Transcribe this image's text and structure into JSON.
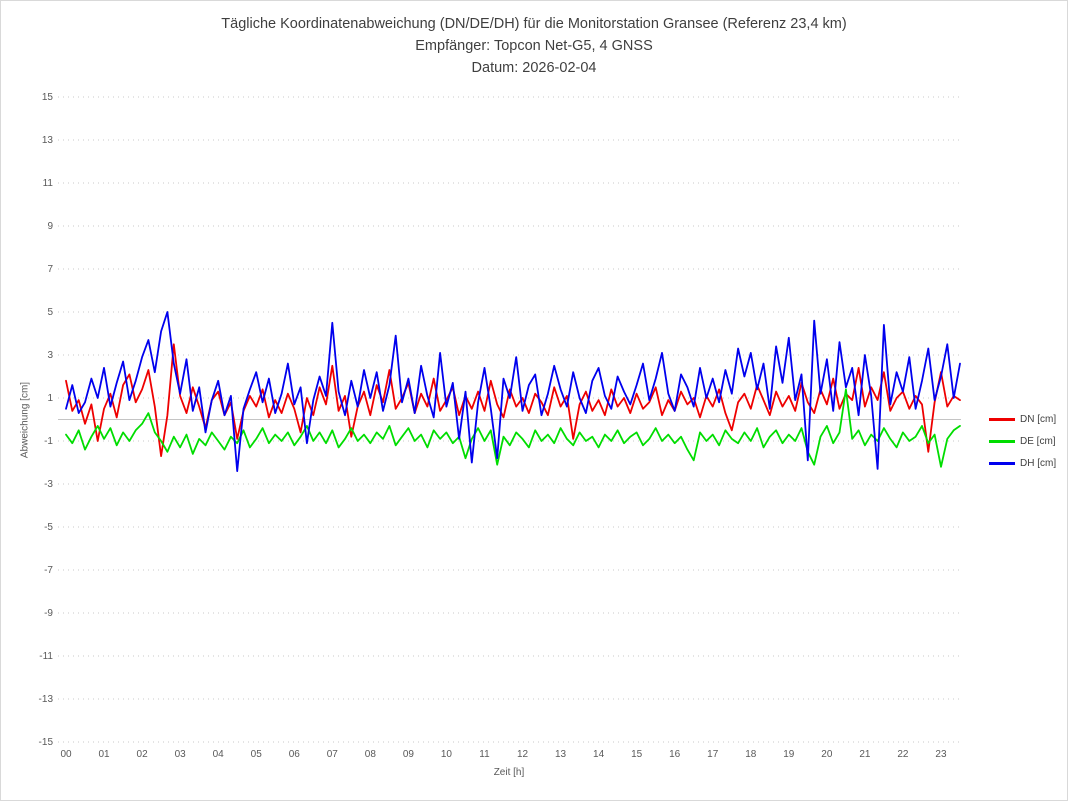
{
  "colors": {
    "grid": "#c9c9c9",
    "zero_line": "#c4c4c4",
    "axis_text": "#595959",
    "title_text": "#3f3f3f"
  },
  "chart_data": {
    "type": "line",
    "title": "Tägliche Koordinatenabweichung (DN/DE/DH) für die Monitorstation Gransee (Referenz 23,4 km)",
    "subtitle1": "Empfänger: Topcon Net-G5, 4 GNSS",
    "subtitle2": "Datum: 2026-02-04",
    "xlabel": "Zeit [h]",
    "ylabel": "Abweichung [cm]",
    "ylim": [
      -15,
      15
    ],
    "yticks": [
      15,
      13,
      11,
      9,
      7,
      5,
      3,
      1,
      -1,
      -3,
      -5,
      -7,
      -9,
      -11,
      -13,
      -15
    ],
    "xtick_labels": [
      "00",
      "01",
      "02",
      "03",
      "04",
      "05",
      "06",
      "07",
      "08",
      "09",
      "10",
      "11",
      "12",
      "13",
      "14",
      "15",
      "16",
      "17",
      "18",
      "19",
      "20",
      "21",
      "22",
      "23"
    ],
    "x_start_hour": 0,
    "x_step_minutes": 10,
    "x_end_hour": 23.5,
    "grid": "horizontal dotted lines at odd values, solid line at 0, no vertical gridlines",
    "legend_position": "right-middle",
    "series": [
      {
        "name": "DN [cm]",
        "id": "dn",
        "color": "#ee0000",
        "values": [
          1.8,
          0.4,
          0.9,
          -0.2,
          0.7,
          -1.0,
          0.5,
          1.2,
          0.1,
          1.6,
          2.1,
          0.8,
          1.4,
          2.3,
          0.6,
          -1.7,
          0.2,
          3.5,
          1.1,
          0.3,
          1.5,
          0.6,
          -0.4,
          0.9,
          1.3,
          0.2,
          0.8,
          -0.9,
          0.4,
          1.1,
          0.6,
          1.4,
          0.1,
          0.9,
          0.3,
          1.2,
          0.5,
          -0.6,
          1.0,
          0.2,
          1.5,
          0.7,
          2.5,
          0.4,
          1.1,
          -0.8,
          0.6,
          1.3,
          0.2,
          1.6,
          0.8,
          2.3,
          0.5,
          1.0,
          1.7,
          0.3,
          1.2,
          0.6,
          1.9,
          0.4,
          0.9,
          1.5,
          0.2,
          1.1,
          0.5,
          1.3,
          0.4,
          1.8,
          0.7,
          0.1,
          1.4,
          0.6,
          1.0,
          0.3,
          1.2,
          0.8,
          0.2,
          1.5,
          0.6,
          1.1,
          -0.9,
          0.7,
          1.3,
          0.4,
          0.9,
          0.2,
          1.4,
          0.6,
          1.0,
          0.3,
          1.2,
          0.5,
          0.8,
          1.5,
          0.2,
          0.9,
          0.4,
          1.3,
          0.7,
          1.0,
          0.1,
          1.1,
          0.6,
          1.4,
          0.3,
          -0.5,
          0.8,
          1.2,
          0.5,
          1.6,
          0.9,
          0.2,
          1.3,
          0.6,
          1.1,
          0.4,
          1.7,
          0.8,
          0.3,
          1.4,
          0.7,
          1.9,
          0.5,
          1.2,
          0.9,
          2.4,
          0.6,
          1.5,
          0.9,
          2.2,
          0.4,
          1.0,
          1.3,
          0.5,
          1.1,
          0.7,
          -1.5,
          0.8,
          2.2,
          0.6,
          1.1,
          0.9
        ]
      },
      {
        "name": "DE [cm]",
        "id": "de",
        "color": "#00dd00",
        "values": [
          -0.7,
          -1.1,
          -0.5,
          -1.4,
          -0.8,
          -0.3,
          -0.9,
          -0.4,
          -1.2,
          -0.6,
          -1.0,
          -0.5,
          -0.2,
          0.3,
          -0.6,
          -1.0,
          -1.5,
          -0.8,
          -1.3,
          -0.7,
          -1.6,
          -0.9,
          -1.2,
          -0.6,
          -1.0,
          -1.4,
          -0.8,
          -1.1,
          -0.5,
          -1.3,
          -0.9,
          -0.4,
          -1.1,
          -0.7,
          -1.0,
          -0.6,
          -1.2,
          -0.8,
          -0.3,
          -1.0,
          -0.6,
          -1.1,
          -0.5,
          -1.3,
          -0.9,
          -0.4,
          -1.0,
          -0.7,
          -1.1,
          -0.6,
          -0.9,
          -0.3,
          -1.2,
          -0.8,
          -0.4,
          -1.0,
          -0.7,
          -1.3,
          -0.5,
          -0.9,
          -0.6,
          -1.1,
          -0.8,
          -1.8,
          -0.9,
          -0.4,
          -1.0,
          -0.5,
          -2.1,
          -0.8,
          -1.2,
          -0.6,
          -0.9,
          -1.3,
          -0.5,
          -1.0,
          -0.7,
          -1.1,
          -0.4,
          -0.9,
          -1.2,
          -0.6,
          -1.0,
          -0.8,
          -1.3,
          -0.7,
          -1.0,
          -0.5,
          -1.1,
          -0.8,
          -0.6,
          -1.2,
          -0.9,
          -0.4,
          -1.0,
          -0.7,
          -1.1,
          -0.8,
          -1.4,
          -1.9,
          -0.6,
          -1.0,
          -0.7,
          -1.2,
          -0.5,
          -0.9,
          -1.1,
          -0.6,
          -1.0,
          -0.4,
          -1.3,
          -0.8,
          -0.5,
          -1.1,
          -0.7,
          -1.0,
          -0.4,
          -1.5,
          -2.1,
          -0.8,
          -0.3,
          -1.1,
          -0.6,
          1.4,
          -0.9,
          -0.5,
          -1.2,
          -0.7,
          -1.0,
          -0.4,
          -0.9,
          -1.3,
          -0.6,
          -1.0,
          -0.8,
          -0.3,
          -1.1,
          -0.7,
          -2.2,
          -0.9,
          -0.5,
          -0.3
        ]
      },
      {
        "name": "DH [cm]",
        "id": "dh",
        "color": "#0000ee",
        "values": [
          0.5,
          1.6,
          0.3,
          0.8,
          1.9,
          1.0,
          2.4,
          0.6,
          1.7,
          2.7,
          0.9,
          1.8,
          2.9,
          3.7,
          2.2,
          4.1,
          5.0,
          2.6,
          1.2,
          2.8,
          0.4,
          1.5,
          -0.6,
          0.9,
          1.8,
          0.2,
          1.1,
          -2.4,
          0.5,
          1.4,
          2.2,
          0.8,
          1.9,
          0.3,
          1.2,
          2.6,
          0.7,
          1.5,
          -1.1,
          0.9,
          2.0,
          1.1,
          4.5,
          1.3,
          0.2,
          1.8,
          0.6,
          2.3,
          1.0,
          2.2,
          0.4,
          1.6,
          3.9,
          0.8,
          1.9,
          0.3,
          2.5,
          1.1,
          0.1,
          3.1,
          0.6,
          1.7,
          -0.9,
          1.3,
          -2.0,
          0.8,
          2.4,
          0.5,
          -1.8,
          1.9,
          1.0,
          2.9,
          0.4,
          1.6,
          2.1,
          0.2,
          1.2,
          2.5,
          1.4,
          0.6,
          2.2,
          1.0,
          0.3,
          1.8,
          2.4,
          1.1,
          0.5,
          2.0,
          1.3,
          0.7,
          1.6,
          2.6,
          0.9,
          1.9,
          3.1,
          1.2,
          0.4,
          2.1,
          1.5,
          0.6,
          2.4,
          1.0,
          1.9,
          0.8,
          2.3,
          1.2,
          3.3,
          2.0,
          3.1,
          1.4,
          2.6,
          0.5,
          3.4,
          1.7,
          3.8,
          0.9,
          2.1,
          -1.9,
          4.6,
          1.2,
          2.8,
          0.4,
          3.6,
          1.5,
          2.4,
          0.2,
          3.0,
          1.1,
          -2.3,
          4.4,
          0.7,
          2.2,
          1.3,
          2.9,
          0.5,
          1.8,
          3.3,
          0.9,
          2.0,
          3.5,
          1.0,
          2.6
        ]
      }
    ]
  }
}
